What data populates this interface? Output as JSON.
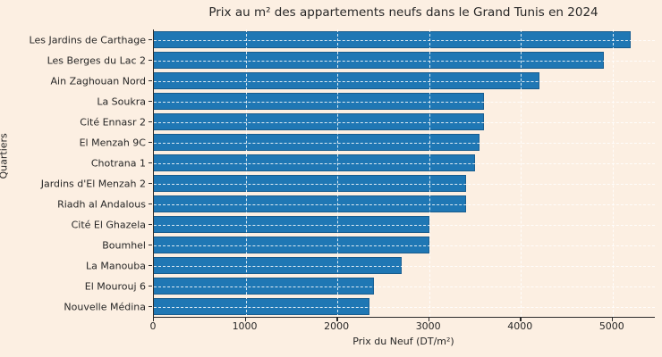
{
  "figure": {
    "background_color": "#fcefe2",
    "text_color": "#262626",
    "spine_color": "#2b2b2b",
    "grid_style": "white dashed, both axes"
  },
  "chart_data": {
    "type": "bar",
    "orientation": "horizontal",
    "title": "Prix au m² des appartements neufs dans le Grand Tunis en 2024",
    "xlabel": "Prix du Neuf (DT/m²)",
    "ylabel": "Quartiers",
    "categories": [
      "Les Jardins de Carthage",
      "Les Berges du Lac 2",
      "Ain Zaghouan Nord",
      "La Soukra",
      "Cité Ennasr 2",
      "El Menzah 9C",
      "Chotrana 1",
      "Jardins d'El Menzah 2",
      "Riadh al Andalous",
      "Cité El Ghazela",
      "Boumhel",
      "La Manouba",
      "El Mourouj 6",
      "Nouvelle Médina"
    ],
    "values": [
      5200,
      4900,
      4200,
      3600,
      3600,
      3550,
      3500,
      3400,
      3400,
      3000,
      3000,
      2700,
      2400,
      2350
    ],
    "xlim": [
      0,
      5460
    ],
    "xticks": [
      0,
      1000,
      2000,
      3000,
      4000,
      5000
    ],
    "legend": null,
    "grid": true,
    "bar_color": "#1f77b4"
  }
}
